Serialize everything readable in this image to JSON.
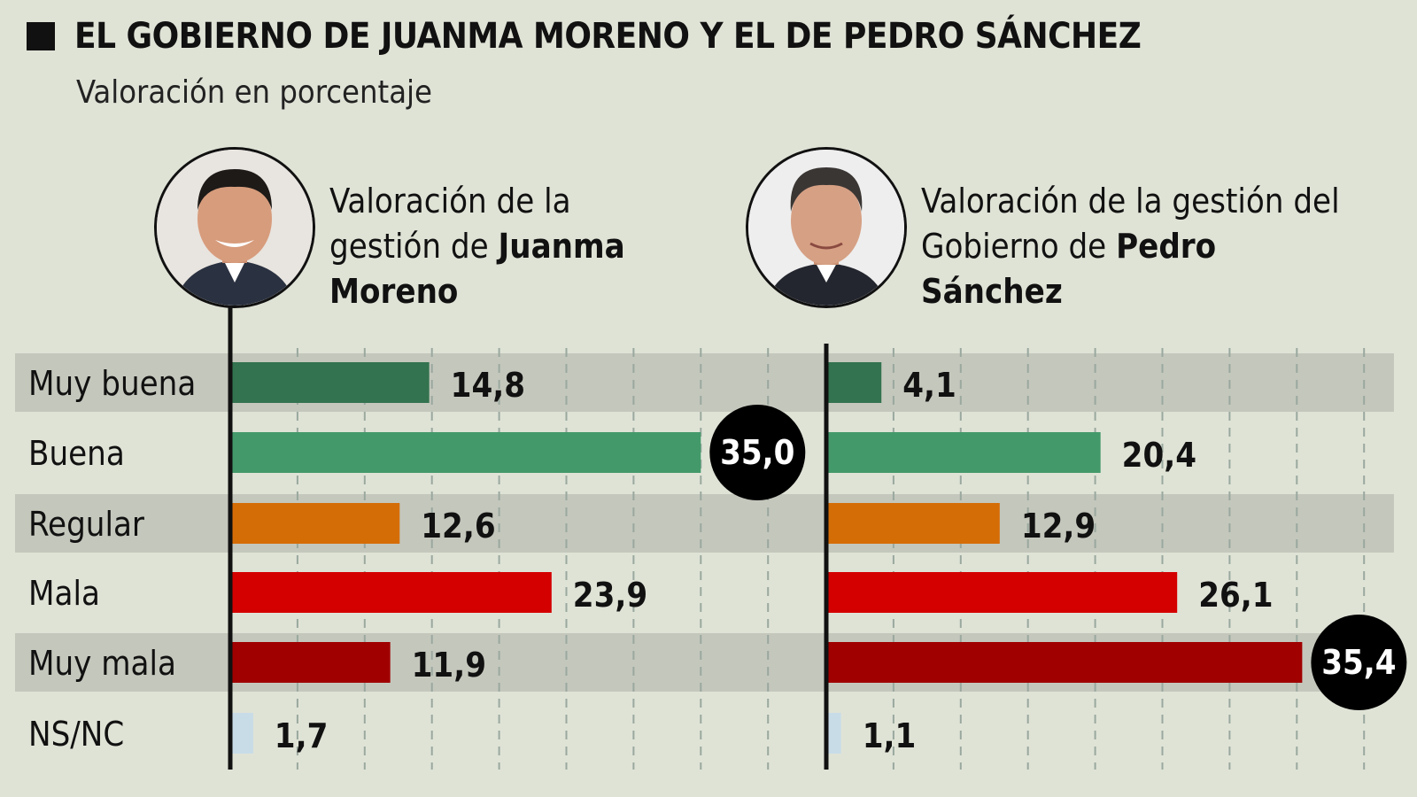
{
  "title": "EL GOBIERNO DE JUANMA MORENO Y EL DE PEDRO SÁNCHEZ",
  "subtitle": "Valoración en porcentaje",
  "panels": [
    {
      "title_plain": "Valoración de la gestión de",
      "title_bold": "Juanma Moreno",
      "photo": "portrait-juanma-moreno"
    },
    {
      "title_plain": "Valoración de la gestión del Gobierno de",
      "title_bold": "Pedro Sánchez",
      "photo": "portrait-pedro-sanchez"
    }
  ],
  "colors": {
    "background": "#dfe3d6",
    "band": "#c4c7bc",
    "Muy buena": "#33734f",
    "Buena": "#43996a",
    "Regular": "#d56d07",
    "Mala": "#d40000",
    "Muy mala": "#a00000",
    "NS/NC": "#c8dce8"
  },
  "chart_data": [
    {
      "type": "bar",
      "orientation": "horizontal",
      "title": "Valoración de la gestión de Juanma Moreno",
      "categories": [
        "Muy buena",
        "Buena",
        "Regular",
        "Mala",
        "Muy mala",
        "NS/NC"
      ],
      "values": [
        14.8,
        35.0,
        12.6,
        23.9,
        11.9,
        1.7
      ],
      "value_labels": [
        "14,8",
        "35,0",
        "12,6",
        "23,9",
        "11,9",
        "1,7"
      ],
      "highlight": "Buena",
      "xlim": [
        0,
        40
      ],
      "grid": true
    },
    {
      "type": "bar",
      "orientation": "horizontal",
      "title": "Valoración de la gestión del Gobierno de Pedro Sánchez",
      "categories": [
        "Muy buena",
        "Buena",
        "Regular",
        "Mala",
        "Muy mala",
        "NS/NC"
      ],
      "values": [
        4.1,
        20.4,
        12.9,
        26.1,
        35.4,
        1.1
      ],
      "value_labels": [
        "4,1",
        "20,4",
        "12,9",
        "26,1",
        "35,4",
        "1,1"
      ],
      "highlight": "Muy mala",
      "xlim": [
        0,
        40
      ],
      "grid": true
    }
  ]
}
